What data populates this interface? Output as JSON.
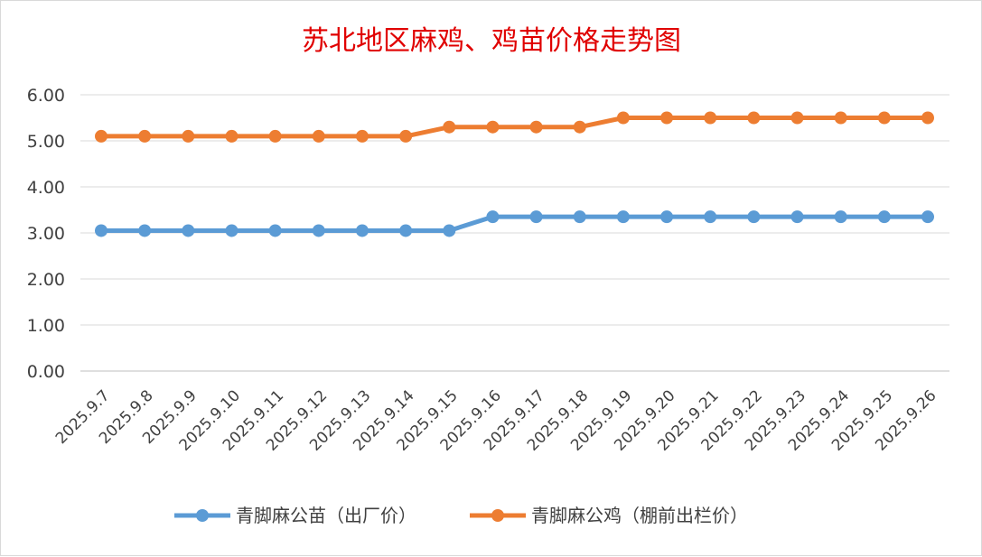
{
  "chart_data": {
    "type": "line",
    "title": "苏北地区麻鸡、鸡苗价格走势图",
    "categories": [
      "2025.9.7",
      "2025.9.8",
      "2025.9.9",
      "2025.9.10",
      "2025.9.11",
      "2025.9.12",
      "2025.9.13",
      "2025.9.14",
      "2025.9.15",
      "2025.9.16",
      "2025.9.17",
      "2025.9.18",
      "2025.9.19",
      "2025.9.20",
      "2025.9.21",
      "2025.9.22",
      "2025.9.23",
      "2025.9.24",
      "2025.9.25",
      "2025.9.26"
    ],
    "yticks": [
      "0.00",
      "1.00",
      "2.00",
      "3.00",
      "4.00",
      "5.00",
      "6.00"
    ],
    "ylim": [
      0,
      6
    ],
    "grid": true,
    "legend_position": "bottom",
    "series": [
      {
        "name": "青脚麻公苗（出厂价）",
        "color": "#5b9bd5",
        "values": [
          3.05,
          3.05,
          3.05,
          3.05,
          3.05,
          3.05,
          3.05,
          3.05,
          3.05,
          3.35,
          3.35,
          3.35,
          3.35,
          3.35,
          3.35,
          3.35,
          3.35,
          3.35,
          3.35,
          3.35
        ]
      },
      {
        "name": "青脚麻公鸡（棚前出栏价）",
        "color": "#ed7d31",
        "values": [
          5.1,
          5.1,
          5.1,
          5.1,
          5.1,
          5.1,
          5.1,
          5.1,
          5.3,
          5.3,
          5.3,
          5.3,
          5.5,
          5.5,
          5.5,
          5.5,
          5.5,
          5.5,
          5.5,
          5.5
        ]
      }
    ]
  }
}
